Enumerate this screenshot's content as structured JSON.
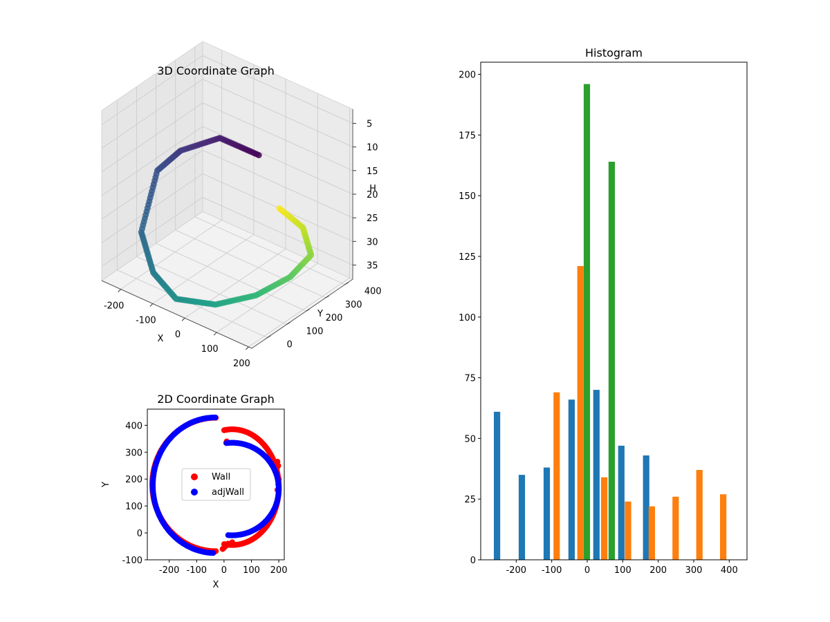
{
  "chart_data": [
    {
      "id": "chart3d",
      "type": "scatter",
      "title": "3D Coordinate Graph",
      "xlabel": "X",
      "ylabel": "Y",
      "zlabel": "H",
      "xlim": [
        -260,
        210
      ],
      "ylim": [
        -80,
        440
      ],
      "zlim": [
        2,
        38
      ],
      "z_inverted": true,
      "xticks": [
        -200,
        -100,
        0,
        100,
        200
      ],
      "yticks": [
        0,
        100,
        200,
        300,
        400
      ],
      "zticks": [
        5,
        10,
        15,
        20,
        25,
        30,
        35
      ],
      "grid": true,
      "color_map": "viridis",
      "path": [
        {
          "x": -75,
          "y": 425,
          "h": 20
        },
        {
          "x": -170,
          "y": 380,
          "h": 18
        },
        {
          "x": -235,
          "y": 285,
          "h": 20
        },
        {
          "x": -250,
          "y": 190,
          "h": 22
        },
        {
          "x": -215,
          "y": 50,
          "h": 30
        },
        {
          "x": -120,
          "y": -45,
          "h": 33
        },
        {
          "x": -30,
          "y": -75,
          "h": 35
        },
        {
          "x": 60,
          "y": -20,
          "h": 35
        },
        {
          "x": 150,
          "y": 40,
          "h": 32
        },
        {
          "x": 190,
          "y": 150,
          "h": 30
        },
        {
          "x": 195,
          "y": 250,
          "h": 28
        },
        {
          "x": 130,
          "y": 315,
          "h": 26
        },
        {
          "x": 40,
          "y": 335,
          "h": 25
        }
      ]
    },
    {
      "id": "chart2d",
      "type": "scatter",
      "title": "2D Coordinate Graph",
      "xlabel": "X",
      "ylabel": "Y",
      "xlim": [
        -280,
        220
      ],
      "ylim": [
        -100,
        460
      ],
      "xticks": [
        -200,
        -100,
        0,
        100,
        200
      ],
      "yticks": [
        -100,
        0,
        100,
        200,
        300,
        400
      ],
      "legend_position": "center",
      "series": [
        {
          "name": "Wall",
          "color": "#ff0000",
          "arc1": {
            "cx": -30,
            "cy": 180,
            "rx": 232,
            "ry": 248,
            "start_deg": 90,
            "end_deg": 270
          },
          "arc2": {
            "cx": 30,
            "cy": 170,
            "rx": 170,
            "ry": 215,
            "start_deg": 100,
            "end_deg": -100
          },
          "extra": [
            [
              195,
              265
            ],
            [
              198,
              250
            ],
            [
              193,
              240
            ],
            [
              200,
              200
            ],
            [
              198,
              180
            ],
            [
              195,
              160
            ],
            [
              10,
              340
            ],
            [
              8,
              335
            ],
            [
              -5,
              -60
            ],
            [
              0,
              -55
            ],
            [
              5,
              -50
            ],
            [
              15,
              -40
            ],
            [
              30,
              -35
            ]
          ]
        },
        {
          "name": "adjWall",
          "color": "#0000ff",
          "arc1": {
            "cx": -32,
            "cy": 177,
            "rx": 228,
            "ry": 252,
            "start_deg": 90,
            "end_deg": 268
          },
          "arc2": {
            "cx": 30,
            "cy": 163,
            "rx": 170,
            "ry": 172,
            "start_deg": 97,
            "end_deg": -95
          },
          "extra": []
        }
      ]
    },
    {
      "id": "hist",
      "type": "bar",
      "title": "Histogram",
      "xlim": [
        -300,
        450
      ],
      "ylim": [
        0,
        205
      ],
      "xticks": [
        -200,
        -100,
        0,
        100,
        200,
        300,
        400
      ],
      "yticks": [
        0,
        25,
        50,
        75,
        100,
        125,
        150,
        175,
        200
      ],
      "bar_width": 18,
      "series": [
        {
          "color": "#1f77b4",
          "bars": [
            [
              -254,
              61
            ],
            [
              -184,
              35
            ],
            [
              -114,
              38
            ],
            [
              -44,
              66
            ],
            [
              26,
              70
            ],
            [
              96,
              47
            ],
            [
              166,
              43
            ]
          ]
        },
        {
          "color": "#ff7f0e",
          "bars": [
            [
              -86,
              69
            ],
            [
              -19,
              121
            ],
            [
              48,
              34
            ],
            [
              115,
              24
            ],
            [
              182,
              22
            ],
            [
              249,
              26
            ],
            [
              316,
              37
            ],
            [
              383,
              27
            ]
          ]
        },
        {
          "color": "#2ca02c",
          "bars": [
            [
              -1,
              196
            ],
            [
              69,
              164
            ]
          ]
        }
      ]
    }
  ]
}
